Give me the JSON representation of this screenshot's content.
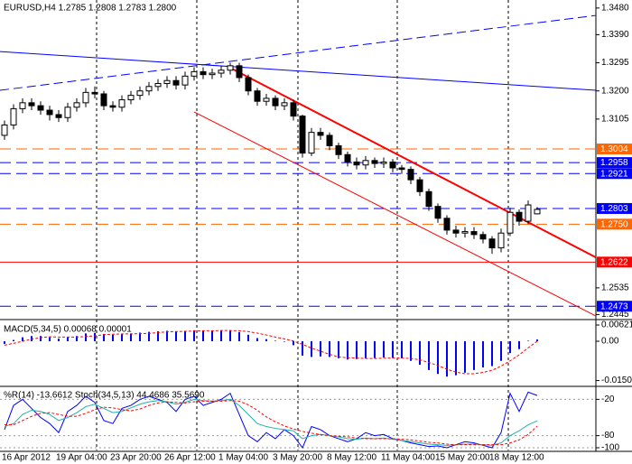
{
  "chart_data": [
    {
      "type": "candlestick",
      "label": "EURUSD,H4  1.2785 1.2808 1.2783 1.2800",
      "categories": [
        "16 Apr 2012",
        null,
        null,
        null,
        null,
        null,
        "19 Apr 04:00",
        null,
        null,
        null,
        null,
        null,
        "23 Apr 20:00",
        null,
        null,
        null,
        null,
        null,
        "26 Apr 12:00",
        null,
        null,
        null,
        null,
        null,
        "1 May 04:00",
        null,
        null,
        null,
        null,
        null,
        "3 May 20:00",
        null,
        null,
        null,
        null,
        null,
        "8 May 12:00",
        null,
        null,
        null,
        null,
        null,
        "11 May 04:00",
        null,
        null,
        null,
        null,
        null,
        "15 May 20:00",
        null,
        null,
        null,
        null,
        null,
        "18 May 12:00",
        null,
        null,
        null,
        null,
        null
      ],
      "open": [
        1.305,
        1.3085,
        1.314,
        1.316,
        1.315,
        1.3135,
        1.312,
        1.311,
        1.3145,
        1.316,
        1.3195,
        1.319,
        1.315,
        1.3145,
        1.317,
        1.3185,
        1.32,
        1.3215,
        1.3225,
        1.3235,
        1.322,
        1.325,
        1.3265,
        1.3255,
        1.326,
        1.327,
        1.3285,
        1.3245,
        1.32,
        1.3165,
        1.3175,
        1.315,
        1.316,
        1.3115,
        1.299,
        1.306,
        1.305,
        1.3015,
        1.2985,
        1.296,
        1.295,
        1.2965,
        1.2955,
        1.296,
        1.294,
        1.2935,
        1.29,
        1.286,
        1.281,
        1.277,
        1.273,
        1.272,
        1.2725,
        1.2715,
        1.27,
        1.267,
        1.272,
        1.279,
        1.276,
        1.2785
      ],
      "high": [
        1.31,
        1.3155,
        1.3175,
        1.3175,
        1.3165,
        1.315,
        1.3135,
        1.316,
        1.3175,
        1.321,
        1.3215,
        1.32,
        1.3165,
        1.3185,
        1.32,
        1.3215,
        1.323,
        1.324,
        1.325,
        1.325,
        1.3265,
        1.328,
        1.328,
        1.3275,
        1.3285,
        1.3295,
        1.3295,
        1.3255,
        1.321,
        1.319,
        1.3185,
        1.3175,
        1.317,
        1.312,
        1.3075,
        1.3075,
        1.306,
        1.3025,
        1.2995,
        1.2975,
        1.298,
        1.2975,
        1.2975,
        1.297,
        1.295,
        1.2945,
        1.291,
        1.287,
        1.282,
        1.278,
        1.2745,
        1.274,
        1.274,
        1.2725,
        1.271,
        1.2735,
        1.2805,
        1.28,
        1.283,
        1.2808
      ],
      "low": [
        1.3035,
        1.307,
        1.3125,
        1.3135,
        1.312,
        1.31,
        1.3095,
        1.3095,
        1.313,
        1.3145,
        1.3175,
        1.3135,
        1.313,
        1.313,
        1.3155,
        1.317,
        1.3185,
        1.32,
        1.321,
        1.3205,
        1.3205,
        1.3235,
        1.324,
        1.324,
        1.3245,
        1.3255,
        1.323,
        1.3185,
        1.315,
        1.315,
        1.3135,
        1.3135,
        1.31,
        1.2975,
        1.298,
        1.3035,
        1.3,
        1.297,
        1.2945,
        1.2935,
        1.2935,
        1.294,
        1.294,
        1.2925,
        1.292,
        1.2885,
        1.2845,
        1.2795,
        1.2755,
        1.2715,
        1.2705,
        1.2705,
        1.27,
        1.2685,
        1.265,
        1.2655,
        1.271,
        1.2745,
        1.275,
        1.2783
      ],
      "close": [
        1.3085,
        1.314,
        1.316,
        1.315,
        1.3135,
        1.312,
        1.311,
        1.3145,
        1.316,
        1.3195,
        1.319,
        1.315,
        1.3145,
        1.317,
        1.3185,
        1.32,
        1.3215,
        1.3225,
        1.3235,
        1.322,
        1.325,
        1.3265,
        1.3255,
        1.326,
        1.327,
        1.3285,
        1.3245,
        1.32,
        1.3165,
        1.3175,
        1.315,
        1.316,
        1.3115,
        1.299,
        1.306,
        1.305,
        1.3015,
        1.2985,
        1.296,
        1.295,
        1.2965,
        1.2955,
        1.296,
        1.294,
        1.2935,
        1.29,
        1.286,
        1.281,
        1.277,
        1.273,
        1.272,
        1.2725,
        1.2715,
        1.27,
        1.267,
        1.272,
        1.279,
        1.276,
        1.2815,
        1.28
      ],
      "ylim": [
        1.2431,
        1.3507
      ],
      "yticks": [
        {
          "value": 1.348,
          "label": "1.3480"
        },
        {
          "value": 1.339,
          "label": "1.3390"
        },
        1.3295,
        {
          "value": 1.32,
          "label": "1.3200"
        },
        1.3105,
        1.2535,
        1.2445
      ],
      "levels": [
        {
          "value": 1.3004,
          "color": "#ff6600",
          "style": "dashed"
        },
        {
          "value": 1.2958,
          "color": "#0000ff",
          "style": "dashed"
        },
        {
          "value": 1.2921,
          "color": "#0000ff",
          "style": "dashed"
        },
        {
          "value": 1.2803,
          "color": "#0000ff",
          "style": "dashed"
        },
        {
          "value": 1.275,
          "label": "1.2750",
          "color": "#ff6600",
          "style": "dashed"
        },
        {
          "value": 1.2622,
          "color": "#ff0000",
          "style": "solid"
        },
        {
          "value": 1.2473,
          "color": "#0000ff",
          "style": "dashed"
        }
      ],
      "trendlines": [
        {
          "start": [
            -0.5,
            1.3202
          ],
          "end": [
            65.5,
            1.3455
          ],
          "color": "#0000ff",
          "style": "dashed",
          "width": 1
        },
        {
          "start": [
            -0.5,
            1.3333
          ],
          "end": [
            65.5,
            1.3202
          ],
          "color": "#0000ff",
          "style": "solid",
          "width": 1
        },
        {
          "start": [
            25,
            1.3278
          ],
          "end": [
            65.5,
            1.2638
          ],
          "color": "#ff0000",
          "style": "solid",
          "width": 2
        },
        {
          "start": [
            21,
            1.3129
          ],
          "end": [
            65.5,
            1.244
          ],
          "color": "#ff0000",
          "style": "solid",
          "width": 1
        }
      ]
    },
    {
      "type": "macd",
      "label": "MACD(5,34,5) 0.00068 0.00001",
      "histogram": {
        "color": "#0000ff",
        "values": [
          -0.001,
          0.0005,
          0.0015,
          0.002,
          0.002,
          0.0015,
          0.001,
          0.0015,
          0.002,
          0.003,
          0.0032,
          0.0028,
          0.0025,
          0.0027,
          0.003,
          0.0033,
          0.0036,
          0.0038,
          0.004,
          0.0037,
          0.004,
          0.0042,
          0.0041,
          0.004,
          0.004,
          0.0042,
          0.0035,
          0.0025,
          0.0012,
          0.0008,
          0.0002,
          -0.0001,
          -0.0015,
          -0.0055,
          -0.006,
          -0.0058,
          -0.006,
          -0.0065,
          -0.007,
          -0.0068,
          -0.0065,
          -0.0064,
          -0.0062,
          -0.0063,
          -0.0065,
          -0.0075,
          -0.009,
          -0.011,
          -0.0125,
          -0.0135,
          -0.013,
          -0.012,
          -0.011,
          -0.01,
          -0.0095,
          -0.0075,
          -0.0045,
          -0.003,
          0.0002,
          0.00068
        ]
      },
      "signal": {
        "color": "#ff0000",
        "values": [
          -0.0015,
          -0.0008,
          0.0,
          0.0008,
          0.0014,
          0.0017,
          0.0016,
          0.0016,
          0.0016,
          0.0018,
          0.0021,
          0.0025,
          0.0027,
          0.0028,
          0.0028,
          0.0029,
          0.003,
          0.0033,
          0.0036,
          0.0037,
          0.0038,
          0.0039,
          0.004,
          0.004,
          0.0041,
          0.0041,
          0.004,
          0.0037,
          0.0031,
          0.0024,
          0.0016,
          0.0009,
          0.0001,
          -0.0012,
          -0.0026,
          -0.0038,
          -0.005,
          -0.006,
          -0.0063,
          -0.0064,
          -0.0066,
          -0.0066,
          -0.0065,
          -0.0064,
          -0.0064,
          -0.0066,
          -0.0071,
          -0.0081,
          -0.0093,
          -0.0107,
          -0.0118,
          -0.0124,
          -0.0124,
          -0.0119,
          -0.0111,
          -0.0095,
          -0.0075,
          -0.0052,
          -0.0025,
          1e-05
        ]
      },
      "ylim": [
        -0.0169,
        0.0076
      ],
      "yticks": [
        0.00621,
        {
          "value": 0,
          "label": "0.00"
        },
        -0.01502
      ]
    },
    {
      "type": "oscillator",
      "label": "%R(14) -13.6612 Stoch(34,5,13) 44.4686 35.5690",
      "series": [
        {
          "color": "#0000ff",
          "style": "solid",
          "values": [
            -70,
            -30,
            -20,
            -35,
            -50,
            -60,
            -75,
            -40,
            -30,
            -15,
            -25,
            -55,
            -60,
            -35,
            -30,
            -20,
            -15,
            -20,
            -25,
            -40,
            -20,
            -15,
            -30,
            -25,
            -20,
            -10,
            -45,
            -80,
            -90,
            -75,
            -85,
            -70,
            -80,
            -100,
            -65,
            -70,
            -80,
            -85,
            -90,
            -85,
            -75,
            -80,
            -78,
            -85,
            -88,
            -92,
            -95,
            -98,
            -97,
            -100,
            -95,
            -90,
            -92,
            -96,
            -100,
            -75,
            -10,
            -40,
            -8,
            -13.6612
          ]
        },
        {
          "color": "#20b2aa",
          "style": "solid",
          "axis": "y2",
          "values": [
            35,
            40,
            55,
            62,
            60,
            55,
            45,
            50,
            58,
            68,
            72,
            65,
            58,
            60,
            66,
            72,
            76,
            78,
            76,
            72,
            75,
            80,
            78,
            77,
            78,
            80,
            70,
            55,
            40,
            35,
            32,
            30,
            28,
            15,
            20,
            22,
            20,
            18,
            15,
            14,
            16,
            15,
            16,
            14,
            12,
            10,
            8,
            6,
            5,
            4,
            5,
            6,
            6,
            5,
            4,
            8,
            20,
            28,
            38,
            44.4686
          ]
        },
        {
          "color": "#ff0000",
          "style": "dashed",
          "axis": "y2",
          "values": [
            38,
            38,
            45,
            52,
            57,
            58,
            55,
            52,
            52,
            57,
            63,
            67,
            66,
            63,
            61,
            64,
            70,
            74,
            76,
            75,
            74,
            76,
            77,
            77,
            77,
            78,
            77,
            71,
            62,
            51,
            43,
            36,
            31,
            27,
            24,
            22,
            20,
            19,
            18,
            16,
            15,
            15,
            15,
            15,
            14,
            13,
            11,
            9,
            8,
            6,
            5,
            5,
            5,
            5,
            5,
            5,
            8,
            13,
            22,
            35.569
          ]
        }
      ],
      "ylim": [
        -100,
        0
      ],
      "yticks": [
        -20,
        -80,
        -100
      ],
      "y2lim": [
        0,
        100
      ],
      "grid": true
    }
  ]
}
